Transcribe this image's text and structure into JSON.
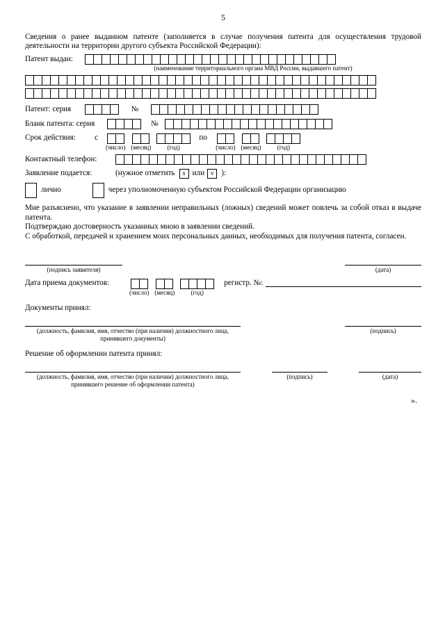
{
  "page_number": "5",
  "intro": "Сведения о ранее выданном патенте (заполняется в случае получения патента для осуществления трудовой деятельности на территории другого субъекта Российской Федерации):",
  "patent_issued_label": "Патент выдан:",
  "issuer_caption": "(наименование территориального органа МВД России, выдавшего патент)",
  "series_label": "Патент: серия",
  "number_sym": "№",
  "blank_series_label": "Бланк патента: серия",
  "validity_label": "Срок действия:",
  "from_label": "с",
  "to_label": "по",
  "cap_day": "(число)",
  "cap_month": "(месяц)",
  "cap_year": "(год)",
  "phone_label": "Контактный телефон:",
  "submit_label": "Заявление подается:",
  "submit_hint_a": "(нужное отметить",
  "mark_x": "x",
  "mark_or": "или",
  "mark_v": "v",
  "submit_hint_b": "):",
  "opt_personal": "лично",
  "opt_org": "через уполномоченную субъектом Российской Федерации организацию",
  "para1": "Мне разъяснено, что указание в заявлении неправильных (ложных) сведений может повлечь за собой отказ в выдаче патента.",
  "para2": "Подтверждаю достоверность указанных мною в заявлении сведений.",
  "para3": "С обработкой, передачей и хранением моих персональных данных, необходимых для получения патента, согласен.",
  "sig_applicant": "(подпись заявителя)",
  "sig_date": "(дата)",
  "docs_date_label": "Дата приема документов:",
  "reg_label": "регистр. №:",
  "docs_accept_label": "Документы принял:",
  "docs_accept_caption": "(должность, фамилия, имя, отчество (при наличии) должностного лица, принявшего документы)",
  "sig_caption": "(подпись)",
  "decision_label": "Решение об оформлении патента принял:",
  "decision_caption": "(должность, фамилия, имя, отчество (при наличии) должностного лица, принявшего решение об оформлении патента)",
  "end_quote": "».",
  "cells": {
    "issued_first": 30,
    "full_row": 42,
    "series": 4,
    "number": 20,
    "blank_series": 4,
    "blank_number": 20,
    "day": 2,
    "month": 2,
    "year": 4,
    "phone": 30
  },
  "colors": {
    "fg": "#000000",
    "bg": "#ffffff"
  }
}
